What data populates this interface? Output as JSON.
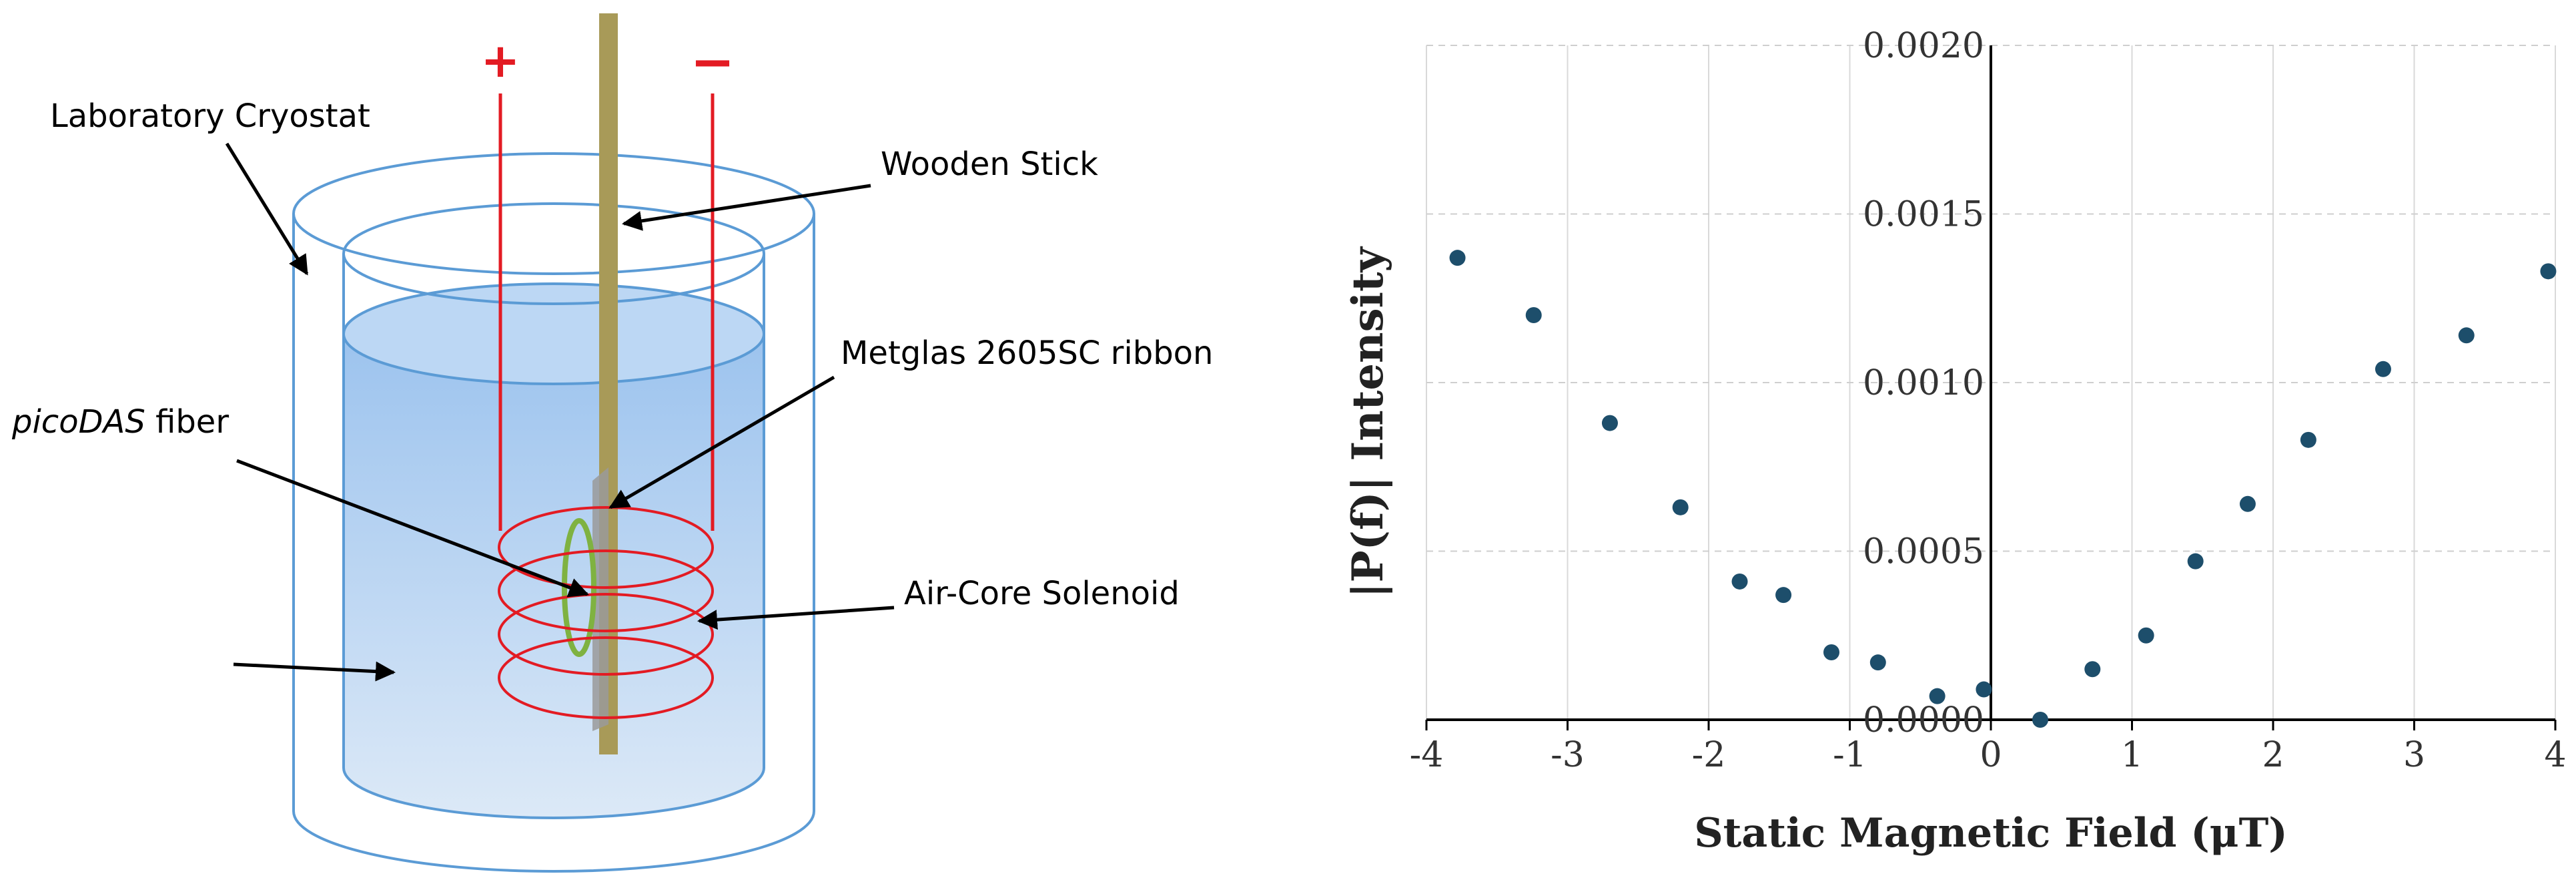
{
  "diagram": {
    "labels": {
      "cryostat": "Laboratory Cryostat",
      "stick": "Wooden Stick",
      "ribbon": "Metglas 2605SC ribbon",
      "fiber_italic": "picoDAS",
      "fiber_rest": " fiber",
      "solenoid": "Air-Core Solenoid",
      "plus": "+",
      "minus": "−"
    },
    "colors": {
      "vessel": "#5b9bd5",
      "liquid_top": "#9cc3ee",
      "liquid_bottom": "#dce9f7",
      "wire": "#e31b23",
      "stick": "#a89a58",
      "ribbon": "#7fb241"
    }
  },
  "chart_data": {
    "type": "scatter",
    "xlabel": "Static Magnetic Field (μT)",
    "ylabel": "|P(f)| Intensity",
    "xlim": [
      -4,
      4
    ],
    "ylim": [
      0,
      0.002
    ],
    "xticks": [
      "-4",
      "-3",
      "-2",
      "-1",
      "0",
      "1",
      "2",
      "3",
      "4"
    ],
    "yticks": [
      "0.0000",
      "0.0005",
      "0.0010",
      "0.0015",
      "0.0020"
    ],
    "grid": true,
    "marker_color": "#1d4e6b",
    "points": [
      {
        "x": -3.78,
        "y": 0.00137
      },
      {
        "x": -3.24,
        "y": 0.0012
      },
      {
        "x": -2.7,
        "y": 0.00088
      },
      {
        "x": -2.2,
        "y": 0.00063
      },
      {
        "x": -1.78,
        "y": 0.00041
      },
      {
        "x": -1.47,
        "y": 0.00037
      },
      {
        "x": -1.13,
        "y": 0.0002
      },
      {
        "x": -0.8,
        "y": 0.00017
      },
      {
        "x": -0.38,
        "y": 7e-05
      },
      {
        "x": -0.05,
        "y": 9e-05
      },
      {
        "x": 0.35,
        "y": 0.0
      },
      {
        "x": 0.72,
        "y": 0.00015
      },
      {
        "x": 1.1,
        "y": 0.00025
      },
      {
        "x": 1.45,
        "y": 0.00047
      },
      {
        "x": 1.82,
        "y": 0.00064
      },
      {
        "x": 2.25,
        "y": 0.00083
      },
      {
        "x": 2.78,
        "y": 0.00104
      },
      {
        "x": 3.37,
        "y": 0.00114
      },
      {
        "x": 3.95,
        "y": 0.00133
      }
    ]
  }
}
